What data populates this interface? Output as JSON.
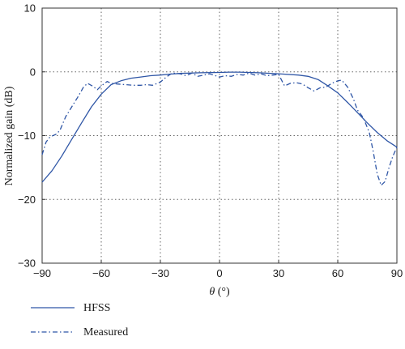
{
  "chart_data": {
    "type": "line",
    "xlabel": "θ (°)",
    "ylabel": "Normalized gain (dB)",
    "xlim": [
      -90,
      90
    ],
    "ylim": [
      -30,
      10
    ],
    "xticks": [
      -90,
      -60,
      -30,
      0,
      30,
      60,
      90
    ],
    "yticks": [
      -30,
      -20,
      -10,
      0,
      10
    ],
    "x_tick_labels": [
      "−90",
      "−60",
      "−30",
      "0",
      "30",
      "60",
      "90"
    ],
    "y_tick_labels": [
      "−30",
      "−20",
      "−10",
      "0",
      "10"
    ],
    "grid": true,
    "legend_position": "bottom-left, outside plot",
    "series": [
      {
        "name": "HFSS",
        "style": "solid",
        "color": "#2f56a6",
        "points": [
          [
            -90,
            -17.3
          ],
          [
            -85,
            -15.5
          ],
          [
            -80,
            -13.2
          ],
          [
            -75,
            -10.6
          ],
          [
            -70,
            -8.0
          ],
          [
            -65,
            -5.5
          ],
          [
            -60,
            -3.5
          ],
          [
            -55,
            -2.0
          ],
          [
            -50,
            -1.4
          ],
          [
            -45,
            -1.0
          ],
          [
            -40,
            -0.8
          ],
          [
            -35,
            -0.6
          ],
          [
            -30,
            -0.5
          ],
          [
            -25,
            -0.35
          ],
          [
            -20,
            -0.25
          ],
          [
            -10,
            -0.15
          ],
          [
            0,
            -0.1
          ],
          [
            5,
            -0.05
          ],
          [
            10,
            -0.05
          ],
          [
            20,
            -0.15
          ],
          [
            30,
            -0.3
          ],
          [
            40,
            -0.5
          ],
          [
            45,
            -0.7
          ],
          [
            50,
            -1.2
          ],
          [
            55,
            -2.2
          ],
          [
            60,
            -3.3
          ],
          [
            65,
            -4.8
          ],
          [
            70,
            -6.4
          ],
          [
            75,
            -8.0
          ],
          [
            80,
            -9.5
          ],
          [
            85,
            -10.8
          ],
          [
            90,
            -11.8
          ]
        ]
      },
      {
        "name": "Measured",
        "style": "dashdot",
        "color": "#2f56a6",
        "points": [
          [
            -90,
            -13.0
          ],
          [
            -88,
            -11.0
          ],
          [
            -86,
            -10.2
          ],
          [
            -83,
            -9.8
          ],
          [
            -81,
            -9.2
          ],
          [
            -78,
            -7.0
          ],
          [
            -75,
            -5.5
          ],
          [
            -72,
            -4.0
          ],
          [
            -69,
            -2.4
          ],
          [
            -67,
            -1.8
          ],
          [
            -64,
            -2.3
          ],
          [
            -62,
            -2.8
          ],
          [
            -60,
            -2.2
          ],
          [
            -57,
            -1.5
          ],
          [
            -55,
            -1.8
          ],
          [
            -52,
            -1.9
          ],
          [
            -48,
            -2.0
          ],
          [
            -44,
            -2.1
          ],
          [
            -40,
            -2.1
          ],
          [
            -37,
            -2.0
          ],
          [
            -34,
            -2.1
          ],
          [
            -30,
            -1.6
          ],
          [
            -27,
            -0.8
          ],
          [
            -24,
            -0.2
          ],
          [
            -20,
            -0.3
          ],
          [
            -17,
            -0.6
          ],
          [
            -14,
            -0.2
          ],
          [
            -11,
            -0.7
          ],
          [
            -8,
            -0.5
          ],
          [
            -5,
            -0.3
          ],
          [
            -2,
            -0.6
          ],
          [
            0,
            -0.8
          ],
          [
            3,
            -0.6
          ],
          [
            6,
            -0.7
          ],
          [
            9,
            -0.4
          ],
          [
            12,
            -0.5
          ],
          [
            15,
            -0.2
          ],
          [
            18,
            -0.5
          ],
          [
            21,
            -0.3
          ],
          [
            24,
            -0.6
          ],
          [
            27,
            -0.5
          ],
          [
            30,
            -0.4
          ],
          [
            33,
            -2.2
          ],
          [
            36,
            -1.8
          ],
          [
            39,
            -1.7
          ],
          [
            42,
            -1.9
          ],
          [
            45,
            -2.5
          ],
          [
            48,
            -3.0
          ],
          [
            51,
            -2.5
          ],
          [
            54,
            -2.4
          ],
          [
            57,
            -1.8
          ],
          [
            60,
            -1.4
          ],
          [
            62,
            -1.3
          ],
          [
            65,
            -2.4
          ],
          [
            68,
            -4.3
          ],
          [
            70,
            -6.0
          ],
          [
            73,
            -7.2
          ],
          [
            76,
            -9.5
          ],
          [
            78,
            -12.5
          ],
          [
            80,
            -16.0
          ],
          [
            82,
            -17.8
          ],
          [
            84,
            -17.2
          ],
          [
            86,
            -15.0
          ],
          [
            88,
            -13.2
          ],
          [
            90,
            -11.8
          ]
        ]
      }
    ]
  }
}
